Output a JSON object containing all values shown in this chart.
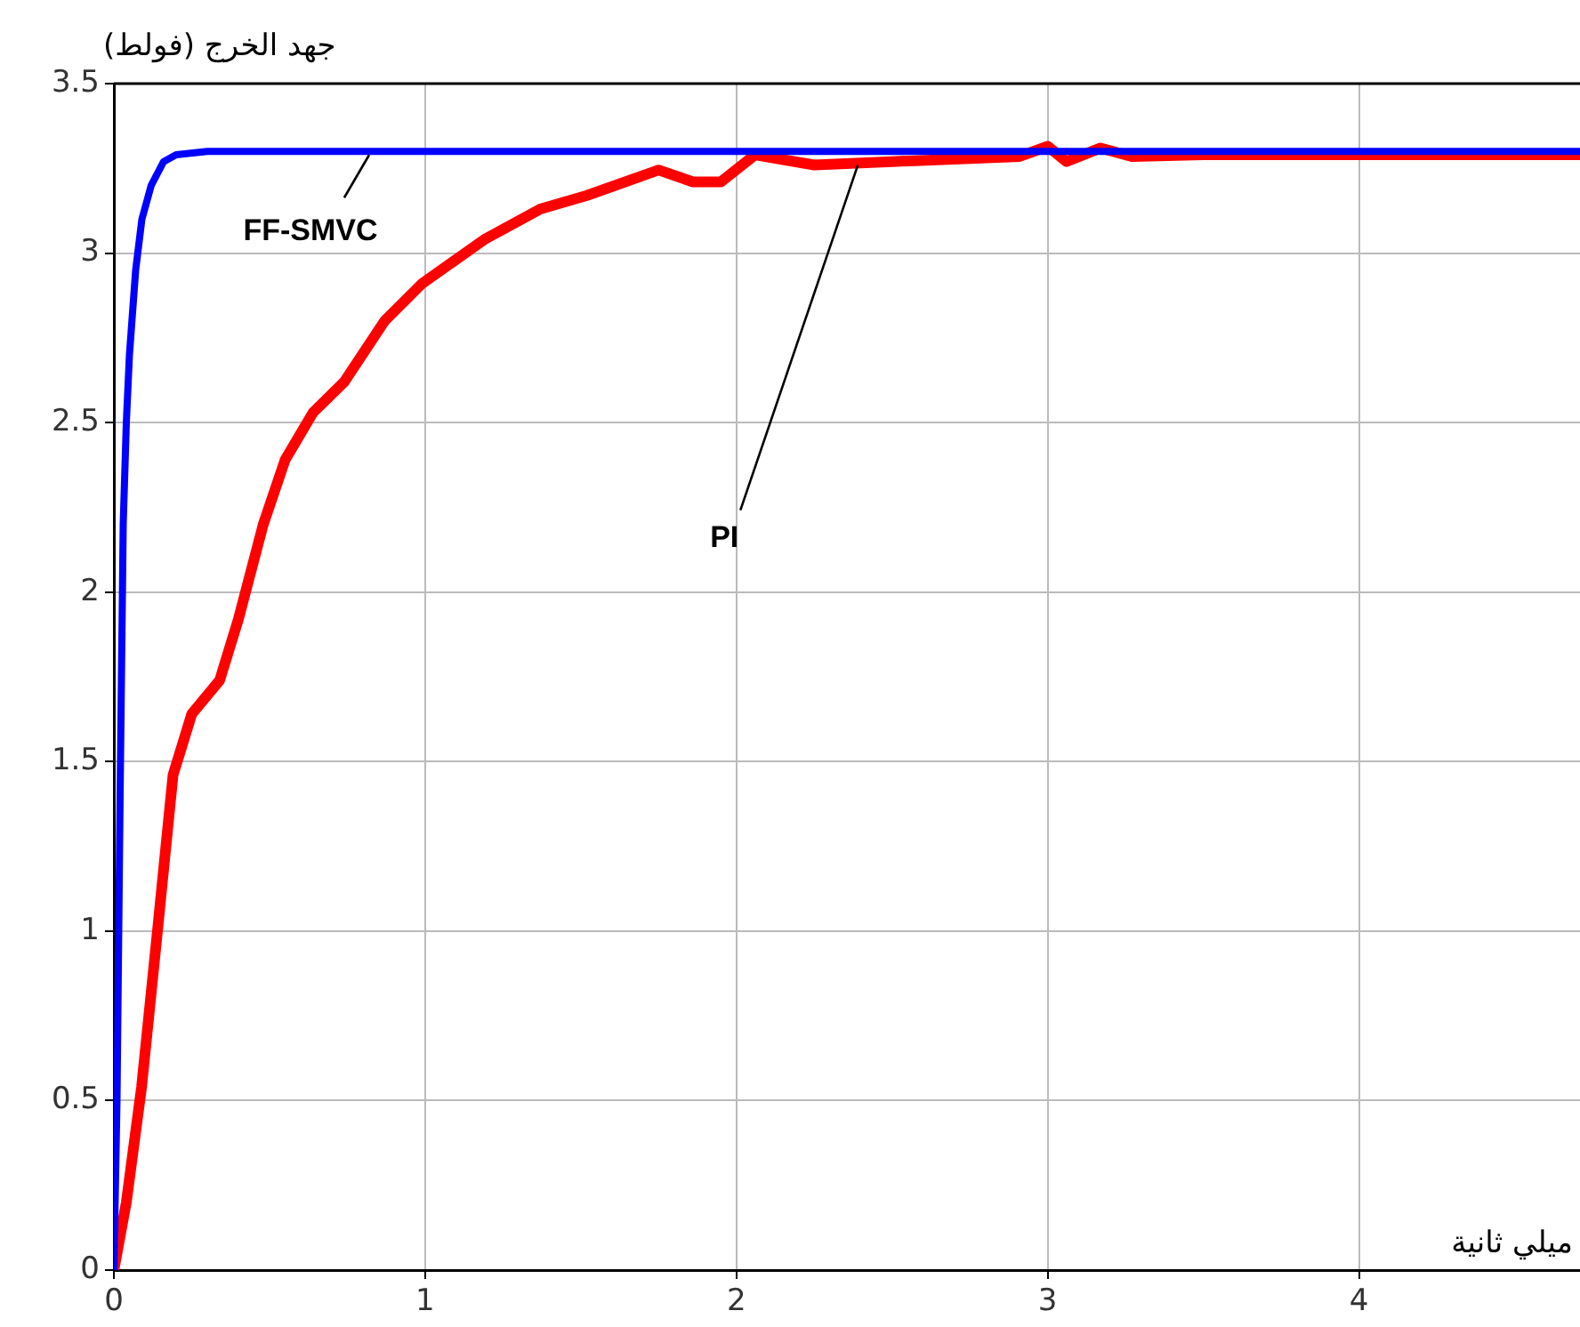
{
  "chart_data": {
    "type": "line",
    "ylabel": "جهد الخرج (فولط)",
    "xlabel": "ميلي ثانية",
    "xlim": [
      0,
      4.71
    ],
    "xticks": [
      0,
      1,
      2,
      3,
      4
    ],
    "ylim": [
      0,
      3.5
    ],
    "yticks": [
      0,
      0.5,
      1,
      1.5,
      2,
      2.5,
      3,
      3.5
    ],
    "grid": true,
    "legend": false,
    "marker": "none",
    "line_style": "solid",
    "series": [
      {
        "color": "#0000ff",
        "x": [
          0,
          0.01,
          0.02,
          0.03,
          0.04,
          0.05,
          0.07,
          0.09,
          0.12,
          0.16,
          0.2,
          0.3,
          1,
          2,
          3,
          4,
          4.71
        ],
        "values": [
          0,
          0.5,
          1.4,
          2.2,
          2.5,
          2.7,
          2.95,
          3.1,
          3.2,
          3.27,
          3.29,
          3.3,
          3.3,
          3.3,
          3.3,
          3.3,
          3.3
        ]
      },
      {
        "color": "#ff0000",
        "x": [
          0,
          0.04,
          0.089,
          0.14,
          0.19,
          0.25,
          0.34,
          0.4,
          0.48,
          0.55,
          0.64,
          0.74,
          0.87,
          0.99,
          1.19,
          1.37,
          1.52,
          1.75,
          1.86,
          1.95,
          2.06,
          2.25,
          2.5,
          2.91,
          3.0,
          3.06,
          3.17,
          3.27,
          3.5,
          4,
          4.71
        ],
        "values": [
          0,
          0.2,
          0.54,
          1.0,
          1.46,
          1.64,
          1.74,
          1.92,
          2.2,
          2.39,
          2.53,
          2.62,
          2.8,
          2.91,
          3.04,
          3.13,
          3.17,
          3.245,
          3.21,
          3.21,
          3.29,
          3.26,
          3.27,
          3.285,
          3.315,
          3.27,
          3.31,
          3.285,
          3.29,
          3.29,
          3.29
        ]
      }
    ],
    "annotations": [
      {
        "text": "FF-SMVC",
        "x": 0.82,
        "y": 3.3
      },
      {
        "text": "PI",
        "x": 2.39,
        "y": 3.27
      }
    ]
  }
}
